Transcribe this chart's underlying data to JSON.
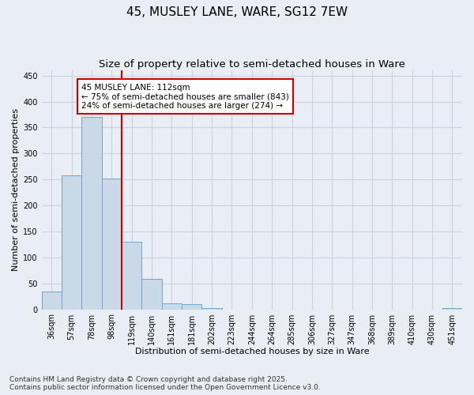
{
  "title": "45, MUSLEY LANE, WARE, SG12 7EW",
  "subtitle": "Size of property relative to semi-detached houses in Ware",
  "xlabel": "Distribution of semi-detached houses by size in Ware",
  "ylabel": "Number of semi-detached properties",
  "bar_labels": [
    "36sqm",
    "57sqm",
    "78sqm",
    "98sqm",
    "119sqm",
    "140sqm",
    "161sqm",
    "181sqm",
    "202sqm",
    "223sqm",
    "244sqm",
    "264sqm",
    "285sqm",
    "306sqm",
    "327sqm",
    "347sqm",
    "368sqm",
    "389sqm",
    "410sqm",
    "430sqm",
    "451sqm"
  ],
  "bar_values": [
    35,
    258,
    370,
    252,
    130,
    58,
    12,
    10,
    3,
    0,
    0,
    0,
    0,
    0,
    0,
    0,
    0,
    0,
    0,
    0,
    3
  ],
  "bar_color": "#c9d9e8",
  "bar_edge_color": "#6fa8c9",
  "grid_color": "#c8d4e0",
  "background_color": "#e8eef4",
  "annotation_box_text": "45 MUSLEY LANE: 112sqm\n← 75% of semi-detached houses are smaller (843)\n24% of semi-detached houses are larger (274) →",
  "annotation_box_color": "#cc0000",
  "vline_x_index": 3,
  "vline_color": "#cc0000",
  "ylim": [
    0,
    460
  ],
  "yticks": [
    0,
    50,
    100,
    150,
    200,
    250,
    300,
    350,
    400,
    450
  ],
  "footer_text": "Contains HM Land Registry data © Crown copyright and database right 2025.\nContains public sector information licensed under the Open Government Licence v3.0.",
  "title_fontsize": 11,
  "subtitle_fontsize": 9.5,
  "xlabel_fontsize": 8,
  "ylabel_fontsize": 8,
  "tick_fontsize": 7,
  "annotation_fontsize": 7.5,
  "footer_fontsize": 6.5
}
